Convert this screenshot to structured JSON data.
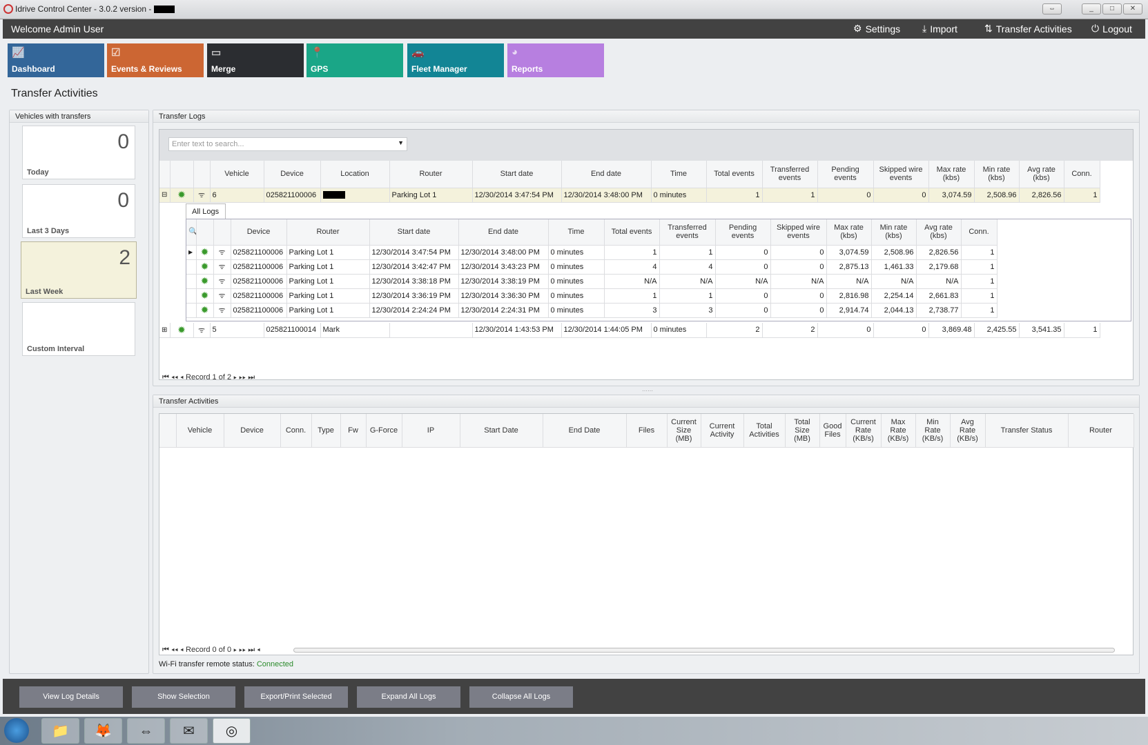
{
  "window": {
    "title": "Idrive Control Center - 3.0.2 version -",
    "buttons": [
      "⇔",
      "_",
      "□",
      "✕"
    ]
  },
  "header": {
    "welcome": "Welcome Admin User",
    "nav": [
      {
        "label": "Settings",
        "icon": "gears-icon"
      },
      {
        "label": "Import",
        "icon": "download-icon"
      },
      {
        "label": "Transfer Activities",
        "icon": "transfer-icon"
      },
      {
        "label": "Logout",
        "icon": "power-icon"
      }
    ]
  },
  "tiles": [
    {
      "label": "Dashboard",
      "color": "#336699"
    },
    {
      "label": "Events & Reviews",
      "color": "#cc6633"
    },
    {
      "label": "Merge",
      "color": "#2b2d31"
    },
    {
      "label": "GPS",
      "color": "#1aa687"
    },
    {
      "label": "Fleet Manager",
      "color": "#128595"
    },
    {
      "label": "Reports",
      "color": "#b77fe0"
    }
  ],
  "page_title": "Transfer Activities",
  "vehicles_panel": {
    "title": "Vehicles with transfers",
    "cards": [
      {
        "label": "Today",
        "count": "0"
      },
      {
        "label": "Last 3 Days",
        "count": "0"
      },
      {
        "label": "Last Week",
        "count": "2",
        "selected": true
      },
      {
        "label": "Custom Interval",
        "count": ""
      }
    ]
  },
  "transfer_logs": {
    "title": "Transfer Logs",
    "search_placeholder": "Enter text to search...",
    "columns": [
      "Vehicle",
      "Device",
      "Location",
      "Router",
      "Start date",
      "End date",
      "Time",
      "Total events",
      "Transferred events",
      "Pending events",
      "Skipped wire events",
      "Max rate (kbs)",
      "Min rate (kbs)",
      "Avg rate (kbs)",
      "Conn."
    ],
    "rows": [
      [
        "6",
        "025821100006",
        "",
        "Parking Lot 1",
        "12/30/2014 3:47:54 PM",
        "12/30/2014 3:48:00 PM",
        "0 minutes",
        "1",
        "1",
        "0",
        "0",
        "3,074.59",
        "2,508.96",
        "2,826.56",
        "1"
      ],
      [
        "5",
        "025821100014",
        "Mark",
        "",
        "12/30/2014 1:43:53 PM",
        "12/30/2014 1:44:05 PM",
        "0 minutes",
        "2",
        "2",
        "0",
        "0",
        "3,869.48",
        "2,425.55",
        "3,541.35",
        "1"
      ]
    ],
    "detail": {
      "tab": "All Logs",
      "columns": [
        "Device",
        "Router",
        "Start date",
        "End date",
        "Time",
        "Total events",
        "Transferred events",
        "Pending events",
        "Skipped wire events",
        "Max rate (kbs)",
        "Min rate (kbs)",
        "Avg rate (kbs)",
        "Conn."
      ],
      "rows": [
        [
          "025821100006",
          "Parking Lot 1",
          "12/30/2014 3:47:54 PM",
          "12/30/2014 3:48:00 PM",
          "0 minutes",
          "1",
          "1",
          "0",
          "0",
          "3,074.59",
          "2,508.96",
          "2,826.56",
          "1"
        ],
        [
          "025821100006",
          "Parking Lot 1",
          "12/30/2014 3:42:47 PM",
          "12/30/2014 3:43:23 PM",
          "0 minutes",
          "4",
          "4",
          "0",
          "0",
          "2,875.13",
          "1,461.33",
          "2,179.68",
          "1"
        ],
        [
          "025821100006",
          "Parking Lot 1",
          "12/30/2014 3:38:18 PM",
          "12/30/2014 3:38:19 PM",
          "0 minutes",
          "N/A",
          "N/A",
          "N/A",
          "N/A",
          "N/A",
          "N/A",
          "N/A",
          "1"
        ],
        [
          "025821100006",
          "Parking Lot 1",
          "12/30/2014 3:36:19 PM",
          "12/30/2014 3:36:30 PM",
          "0 minutes",
          "1",
          "1",
          "0",
          "0",
          "2,816.98",
          "2,254.14",
          "2,661.83",
          "1"
        ],
        [
          "025821100006",
          "Parking Lot 1",
          "12/30/2014 2:24:24 PM",
          "12/30/2014 2:24:31 PM",
          "0 minutes",
          "3",
          "3",
          "0",
          "0",
          "2,914.74",
          "2,044.13",
          "2,738.77",
          "1"
        ]
      ]
    },
    "pager": "Record 1 of 2"
  },
  "transfer_activities": {
    "title": "Transfer Activities",
    "columns": [
      "Vehicle",
      "Device",
      "Conn.",
      "Type",
      "Fw",
      "G-Force",
      "IP",
      "Start Date",
      "End Date",
      "Files",
      "Current Size (MB)",
      "Current Activity",
      "Total Activities",
      "Total Size (MB)",
      "Good Files",
      "Current Rate (KB/s)",
      "Max Rate (KB/s)",
      "Min Rate (KB/s)",
      "Avg Rate (KB/s)",
      "Transfer Status",
      "Router"
    ],
    "pager": "Record 0 of 0"
  },
  "status": {
    "label": "Wi-Fi transfer remote status:",
    "value": "Connected",
    "color": "#2a8a2a"
  },
  "actions": [
    "View Log Details",
    "Show Selection",
    "Export/Print Selected",
    "Expand All Logs",
    "Collapse All Logs"
  ],
  "taskbar": [
    "start-orb-icon",
    "explorer-icon",
    "firefox-icon",
    "teamviewer-icon",
    "outlook-icon",
    "idrive-icon"
  ]
}
